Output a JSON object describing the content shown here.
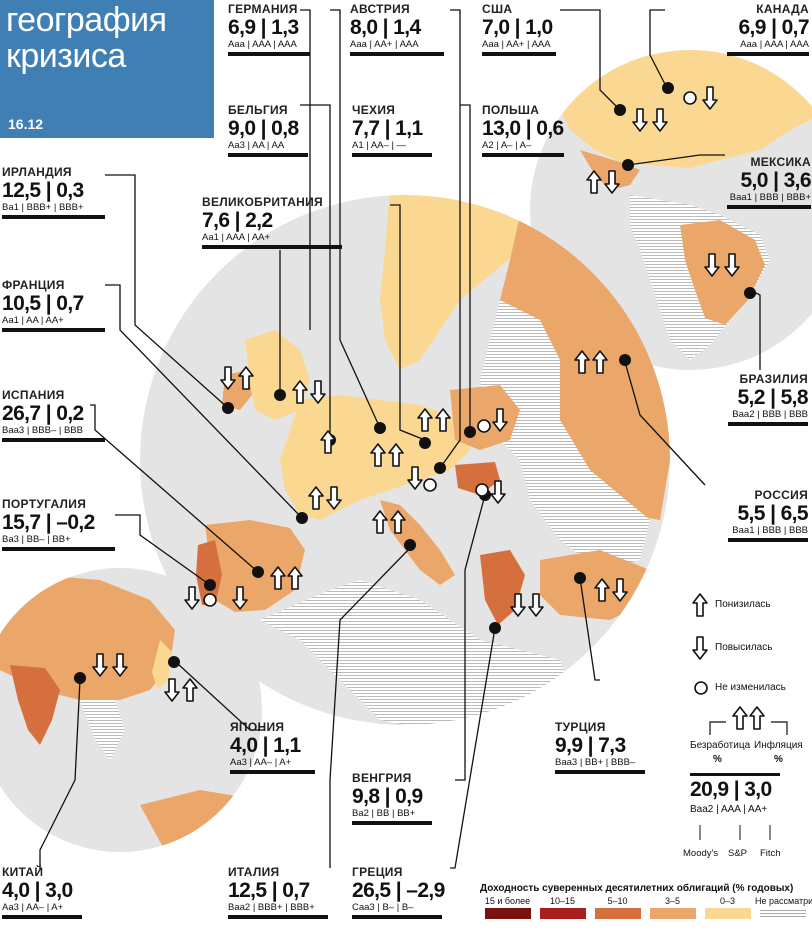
{
  "header": {
    "title_line1": "география",
    "title_line2": "кризиса",
    "date": "16.12"
  },
  "countries": [
    {
      "name": "ГЕРМАНИЯ",
      "unemployment": "6,9",
      "inflation": "1,3",
      "ratings": "Aaa | AAA | AAA",
      "unemployment_trend": "down",
      "inflation_trend": "up"
    },
    {
      "name": "АВСТРИЯ",
      "unemployment": "8,0",
      "inflation": "1,4",
      "ratings": "Aaa | AA+ | AAA",
      "unemployment_trend": "down",
      "inflation_trend": "up"
    },
    {
      "name": "США",
      "unemployment": "7,0",
      "inflation": "1,0",
      "ratings": "Aaa | AA+ | AAA",
      "unemployment_trend": "down",
      "inflation_trend": "down"
    },
    {
      "name": "КАНАДА",
      "unemployment": "6,9",
      "inflation": "0,7",
      "ratings": "Aaa | AAA | AAA",
      "unemployment_trend": "unchanged",
      "inflation_trend": "down"
    },
    {
      "name": "БЕЛЬГИЯ",
      "unemployment": "9,0",
      "inflation": "0,8",
      "ratings": "Aa3 | AA | AA",
      "unemployment_trend": "down",
      "inflation_trend": "up"
    },
    {
      "name": "ЧЕХИЯ",
      "unemployment": "7,7",
      "inflation": "1,1",
      "ratings": "A1 | AA– | —",
      "unemployment_trend": "down",
      "inflation_trend": "up"
    },
    {
      "name": "ПОЛЬША",
      "unemployment": "13,0",
      "inflation": "0,6",
      "ratings": "A2 | A– | A–",
      "unemployment_trend": "unchanged",
      "inflation_trend": "down"
    },
    {
      "name": "МЕКСИКА",
      "unemployment": "5,0",
      "inflation": "3,6",
      "ratings": "Baa1 | BBB | BBB+",
      "unemployment_trend": "up",
      "inflation_trend": "down"
    },
    {
      "name": "ИРЛАНДИЯ",
      "unemployment": "12,5",
      "inflation": "0,3",
      "ratings": "Ba1 | BBB+ | BBB+",
      "unemployment_trend": "down",
      "inflation_trend": "up"
    },
    {
      "name": "ВЕЛИКОБРИТАНИЯ",
      "unemployment": "7,6",
      "inflation": "2,2",
      "ratings": "Aa1 | AAA | AA+",
      "unemployment_trend": "down",
      "inflation_trend": "down"
    },
    {
      "name": "ФРАНЦИЯ",
      "unemployment": "10,5",
      "inflation": "0,7",
      "ratings": "Aa1 | AA | AA+",
      "unemployment_trend": "up",
      "inflation_trend": "down"
    },
    {
      "name": "ИСПАНИЯ",
      "unemployment": "26,7",
      "inflation": "0,2",
      "ratings": "Baa3 | BBB– | BBB",
      "unemployment_trend": "up",
      "inflation_trend": "up"
    },
    {
      "name": "ПОРТУГАЛИЯ",
      "unemployment": "15,7",
      "inflation": "–0,2",
      "ratings": "Ba3 | BB– | BB+",
      "unemployment_trend": "down",
      "inflation_trend": "down"
    },
    {
      "name": "БРАЗИЛИЯ",
      "unemployment": "5,2",
      "inflation": "5,8",
      "ratings": "Baa2 | BBB | BBB",
      "unemployment_trend": "down",
      "inflation_trend": "down"
    },
    {
      "name": "РОССИЯ",
      "unemployment": "5,5",
      "inflation": "6,5",
      "ratings": "Baa1 | BBB | BBB",
      "unemployment_trend": "up",
      "inflation_trend": "up"
    },
    {
      "name": "ЯПОНИЯ",
      "unemployment": "4,0",
      "inflation": "1,1",
      "ratings": "Aa3 | AA– | A+",
      "unemployment_trend": "down",
      "inflation_trend": "up"
    },
    {
      "name": "ТУРЦИЯ",
      "unemployment": "9,9",
      "inflation": "7,3",
      "ratings": "Baa3 | BB+ | BBB–",
      "unemployment_trend": "up",
      "inflation_trend": "down"
    },
    {
      "name": "ВЕНГРИЯ",
      "unemployment": "9,8",
      "inflation": "0,9",
      "ratings": "Ba2 | BB | BB+",
      "unemployment_trend": "unchanged",
      "inflation_trend": "down"
    },
    {
      "name": "КИТАЙ",
      "unemployment": "4,0",
      "inflation": "3,0",
      "ratings": "Aa3 | AA– | A+",
      "unemployment_trend": "down",
      "inflation_trend": "down"
    },
    {
      "name": "ИТАЛИЯ",
      "unemployment": "12,5",
      "inflation": "0,7",
      "ratings": "Baa2 | BBB+ | BBB+",
      "unemployment_trend": "up",
      "inflation_trend": "up"
    },
    {
      "name": "ГРЕЦИЯ",
      "unemployment": "26,5",
      "inflation": "–2,9",
      "ratings": "Caa3 | B– | B–",
      "unemployment_trend": "down",
      "inflation_trend": "down"
    }
  ],
  "key": {
    "decreased": "Понизилась",
    "increased": "Повысилась",
    "unchanged": "Не изменилась",
    "unemployment_label": "Безработица",
    "inflation_label": "Инфляция",
    "percent1": "%",
    "percent2": "%",
    "sample_values": "20,9 | 3,0",
    "sample_ratings": "Baa2 | AAA | AA+",
    "agency1": "Moody's",
    "agency2": "S&P",
    "agency3": "Fitch"
  },
  "legend": {
    "title": "Доходность суверенных десятилетних облигаций (% годовых)",
    "items": [
      {
        "label": "15 и более",
        "color": "#7a1010"
      },
      {
        "label": "10–15",
        "color": "#a8201e"
      },
      {
        "label": "5–10",
        "color": "#d5703e"
      },
      {
        "label": "3–5",
        "color": "#eba76a"
      },
      {
        "label": "0–3",
        "color": "#fbd892"
      },
      {
        "label": "Не рассматривается",
        "color": "hatch"
      }
    ]
  }
}
